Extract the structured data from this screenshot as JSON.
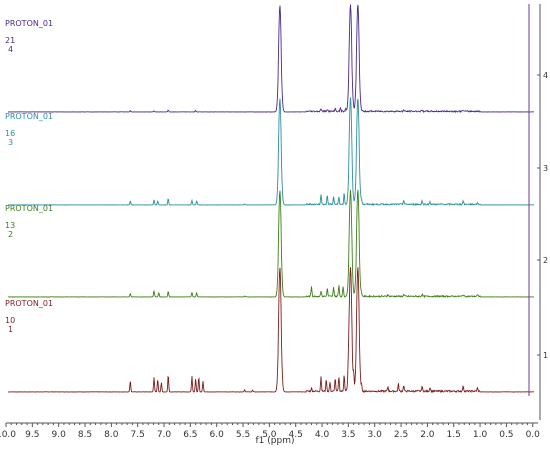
{
  "chart_data": {
    "type": "line",
    "xlabel": "f1 (ppm)",
    "x_ticks": [
      "10.0",
      "9.5",
      "9.0",
      "8.5",
      "8.0",
      "7.5",
      "7.0",
      "6.5",
      "6.0",
      "5.5",
      "5.0",
      "4.5",
      "4.0",
      "3.5",
      "3.0",
      "2.5",
      "2.0",
      "1.5",
      "1.0",
      "0.5",
      "0.0"
    ],
    "xlim": [
      10.0,
      -0.1
    ],
    "right_axis_ticks": [
      "1",
      "2",
      "3",
      "4"
    ],
    "series": [
      {
        "name": "PROTON_01",
        "expno": "10",
        "index": "1",
        "color": "#7b1f1f",
        "baseline": 1,
        "peaks": [
          {
            "ppm": 7.64,
            "height": 0.42
          },
          {
            "ppm": 7.19,
            "height": 0.55
          },
          {
            "ppm": 7.12,
            "height": 0.48
          },
          {
            "ppm": 7.05,
            "height": 0.35
          },
          {
            "ppm": 6.92,
            "height": 0.65
          },
          {
            "ppm": 6.47,
            "height": 0.6
          },
          {
            "ppm": 6.4,
            "height": 0.5
          },
          {
            "ppm": 6.34,
            "height": 0.55
          },
          {
            "ppm": 6.26,
            "height": 0.4
          },
          {
            "ppm": 5.47,
            "height": 0.08
          },
          {
            "ppm": 5.32,
            "height": 0.06
          },
          {
            "ppm": 4.8,
            "height": 3.9
          },
          {
            "ppm": 4.2,
            "height": 0.12
          },
          {
            "ppm": 4.02,
            "height": 0.55
          },
          {
            "ppm": 3.92,
            "height": 0.45
          },
          {
            "ppm": 3.85,
            "height": 0.35
          },
          {
            "ppm": 3.75,
            "height": 0.5
          },
          {
            "ppm": 3.68,
            "height": 0.55
          },
          {
            "ppm": 3.58,
            "height": 0.65
          },
          {
            "ppm": 3.5,
            "height": 0.48
          },
          {
            "ppm": 3.46,
            "height": 3.9
          },
          {
            "ppm": 3.4,
            "height": 0.55
          },
          {
            "ppm": 3.32,
            "height": 3.9
          },
          {
            "ppm": 3.25,
            "height": 0.2
          },
          {
            "ppm": 2.75,
            "height": 0.18
          },
          {
            "ppm": 2.55,
            "height": 0.28
          },
          {
            "ppm": 2.45,
            "height": 0.22
          },
          {
            "ppm": 2.1,
            "height": 0.18
          },
          {
            "ppm": 1.95,
            "height": 0.15
          },
          {
            "ppm": 1.32,
            "height": 0.2
          },
          {
            "ppm": 1.05,
            "height": 0.12
          }
        ]
      },
      {
        "name": "PROTON_01",
        "expno": "13",
        "index": "2",
        "color": "#3f7f1a",
        "baseline": 2,
        "peaks": [
          {
            "ppm": 7.64,
            "height": 0.15
          },
          {
            "ppm": 7.19,
            "height": 0.28
          },
          {
            "ppm": 7.1,
            "height": 0.2
          },
          {
            "ppm": 6.92,
            "height": 0.25
          },
          {
            "ppm": 6.47,
            "height": 0.2
          },
          {
            "ppm": 6.38,
            "height": 0.18
          },
          {
            "ppm": 5.47,
            "height": 0.04
          },
          {
            "ppm": 4.8,
            "height": 3.9
          },
          {
            "ppm": 4.2,
            "height": 0.45
          },
          {
            "ppm": 4.02,
            "height": 0.25
          },
          {
            "ppm": 3.9,
            "height": 0.35
          },
          {
            "ppm": 3.78,
            "height": 0.4
          },
          {
            "ppm": 3.68,
            "height": 0.5
          },
          {
            "ppm": 3.6,
            "height": 0.45
          },
          {
            "ppm": 3.46,
            "height": 3.9
          },
          {
            "ppm": 3.32,
            "height": 3.9
          },
          {
            "ppm": 3.25,
            "height": 0.12
          },
          {
            "ppm": 2.75,
            "height": 0.1
          },
          {
            "ppm": 2.45,
            "height": 0.08
          },
          {
            "ppm": 2.1,
            "height": 0.1
          },
          {
            "ppm": 1.32,
            "height": 0.08
          },
          {
            "ppm": 1.05,
            "height": 0.06
          }
        ]
      },
      {
        "name": "PROTON_01",
        "expno": "16",
        "index": "3",
        "color": "#2b8fa0",
        "baseline": 3,
        "peaks": [
          {
            "ppm": 7.64,
            "height": 0.18
          },
          {
            "ppm": 7.19,
            "height": 0.22
          },
          {
            "ppm": 7.12,
            "height": 0.18
          },
          {
            "ppm": 6.92,
            "height": 0.28
          },
          {
            "ppm": 6.47,
            "height": 0.2
          },
          {
            "ppm": 6.38,
            "height": 0.18
          },
          {
            "ppm": 5.47,
            "height": 0.04
          },
          {
            "ppm": 4.8,
            "height": 3.9
          },
          {
            "ppm": 4.02,
            "height": 0.45
          },
          {
            "ppm": 3.9,
            "height": 0.4
          },
          {
            "ppm": 3.78,
            "height": 0.35
          },
          {
            "ppm": 3.68,
            "height": 0.35
          },
          {
            "ppm": 3.58,
            "height": 0.5
          },
          {
            "ppm": 3.46,
            "height": 3.9
          },
          {
            "ppm": 3.32,
            "height": 3.9
          },
          {
            "ppm": 3.25,
            "height": 0.2
          },
          {
            "ppm": 2.45,
            "height": 0.2
          },
          {
            "ppm": 2.1,
            "height": 0.16
          },
          {
            "ppm": 1.95,
            "height": 0.12
          },
          {
            "ppm": 1.32,
            "height": 0.16
          },
          {
            "ppm": 1.05,
            "height": 0.08
          }
        ]
      },
      {
        "name": "PROTON_01",
        "expno": "21",
        "index": "4",
        "color": "#4a2a8a",
        "baseline": 4,
        "peaks": [
          {
            "ppm": 7.64,
            "height": 0.06
          },
          {
            "ppm": 7.19,
            "height": 0.05
          },
          {
            "ppm": 6.92,
            "height": 0.08
          },
          {
            "ppm": 6.4,
            "height": 0.06
          },
          {
            "ppm": 4.8,
            "height": 3.9
          },
          {
            "ppm": 4.02,
            "height": 0.12
          },
          {
            "ppm": 3.9,
            "height": 0.1
          },
          {
            "ppm": 3.75,
            "height": 0.14
          },
          {
            "ppm": 3.65,
            "height": 0.16
          },
          {
            "ppm": 3.55,
            "height": 0.12
          },
          {
            "ppm": 3.46,
            "height": 3.9
          },
          {
            "ppm": 3.32,
            "height": 3.9
          },
          {
            "ppm": 2.45,
            "height": 0.06
          },
          {
            "ppm": 2.1,
            "height": 0.05
          },
          {
            "ppm": 1.32,
            "height": 0.06
          }
        ]
      }
    ]
  }
}
